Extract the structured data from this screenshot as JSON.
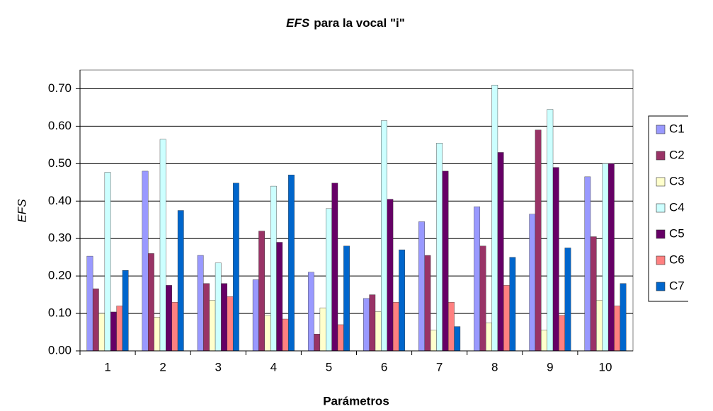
{
  "chart_data": {
    "type": "bar",
    "title_emphasis": "EFS",
    "title": "para la vocal \"i\"",
    "y_label": "EFS",
    "x_label": "Parámetros",
    "categories": [
      "1",
      "2",
      "3",
      "4",
      "5",
      "6",
      "7",
      "8",
      "9",
      "10"
    ],
    "series": [
      {
        "name": "C1",
        "color": "#9999ff",
        "values": [
          0.253,
          0.48,
          0.255,
          0.19,
          0.21,
          0.14,
          0.345,
          0.385,
          0.365,
          0.465
        ]
      },
      {
        "name": "C2",
        "color": "#993366",
        "values": [
          0.166,
          0.26,
          0.18,
          0.32,
          0.045,
          0.15,
          0.255,
          0.28,
          0.59,
          0.305
        ]
      },
      {
        "name": "C3",
        "color": "#ffffcc",
        "values": [
          0.1,
          0.09,
          0.135,
          0.095,
          0.115,
          0.105,
          0.055,
          0.075,
          0.055,
          0.135
        ]
      },
      {
        "name": "C4",
        "color": "#ccffff",
        "values": [
          0.477,
          0.565,
          0.235,
          0.44,
          0.38,
          0.615,
          0.555,
          0.71,
          0.645,
          0.5
        ]
      },
      {
        "name": "C5",
        "color": "#660066",
        "values": [
          0.104,
          0.175,
          0.18,
          0.29,
          0.448,
          0.405,
          0.48,
          0.53,
          0.49,
          0.5
        ]
      },
      {
        "name": "C6",
        "color": "#ff8080",
        "values": [
          0.12,
          0.13,
          0.145,
          0.085,
          0.07,
          0.13,
          0.13,
          0.175,
          0.095,
          0.12
        ]
      },
      {
        "name": "C7",
        "color": "#0066cc",
        "values": [
          0.215,
          0.375,
          0.448,
          0.47,
          0.28,
          0.27,
          0.065,
          0.25,
          0.275,
          0.18
        ]
      }
    ],
    "ylim": [
      0,
      0.75
    ],
    "yticks": [
      {
        "value": 0,
        "label": "0.00"
      },
      {
        "value": 0.1,
        "label": "0.10"
      },
      {
        "value": 0.2,
        "label": "0.20"
      },
      {
        "value": 0.3,
        "label": "0.30"
      },
      {
        "value": 0.4,
        "label": "0.40"
      },
      {
        "value": 0.5,
        "label": "0.50"
      },
      {
        "value": 0.6,
        "label": "0.60"
      },
      {
        "value": 0.7,
        "label": "0.70"
      }
    ],
    "grid": true,
    "legend": "right"
  }
}
